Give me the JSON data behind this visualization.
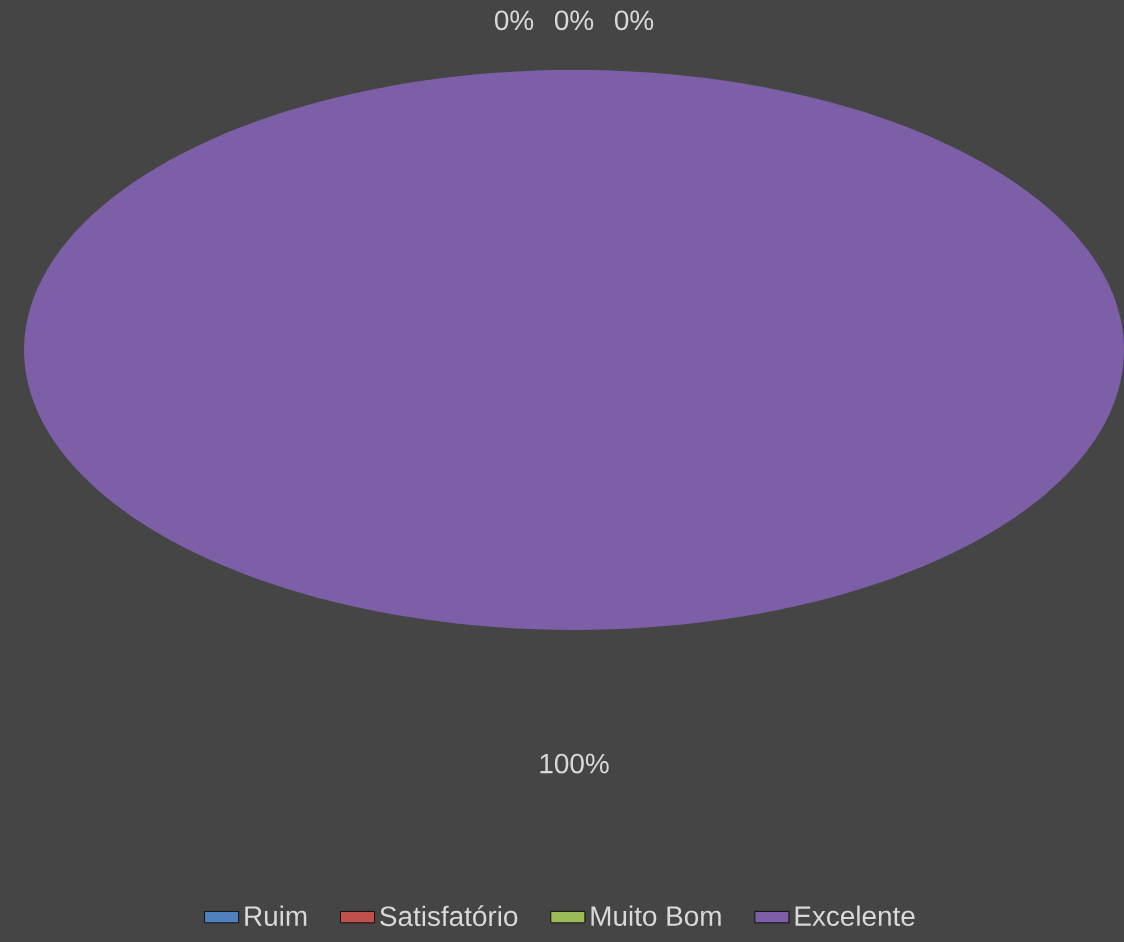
{
  "chart_data": {
    "type": "pie",
    "categories": [
      "Ruim",
      "Satisfatório",
      "Muito Bom",
      "Excelente"
    ],
    "values": [
      0,
      0,
      0,
      100
    ],
    "colors": [
      "#4f81bd",
      "#c0504d",
      "#9bbb59",
      "#7d5fa8"
    ],
    "value_labels": [
      "0%",
      "0%",
      "0%",
      "100%"
    ],
    "legend": "bottom"
  }
}
